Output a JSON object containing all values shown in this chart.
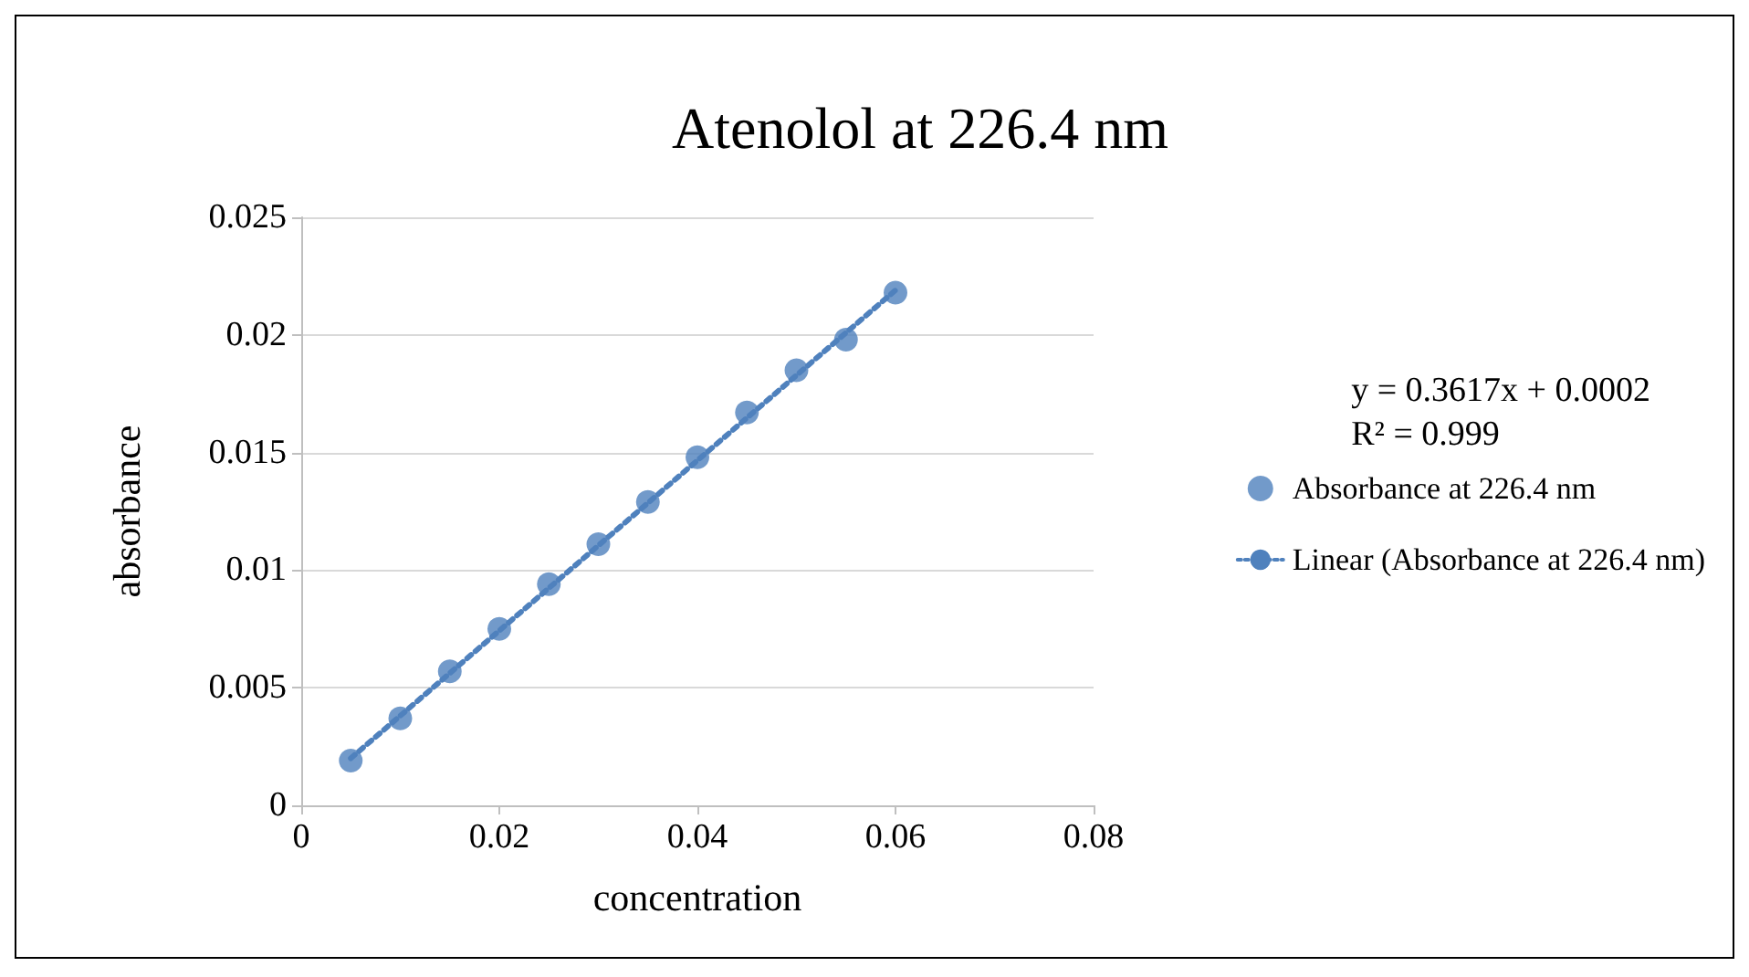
{
  "chart_data": {
    "type": "scatter",
    "title": "Atenolol at 226.4 nm",
    "xlabel": "concentration",
    "ylabel": "absorbance",
    "xlim": [
      0,
      0.08
    ],
    "xticks": [
      0,
      0.02,
      0.04,
      0.06,
      0.08
    ],
    "ylim": [
      0,
      0.025
    ],
    "yticks": [
      0,
      0.005,
      0.01,
      0.015,
      0.02,
      0.025
    ],
    "grid": "y",
    "legend": "right",
    "marker": "circle",
    "annotations": [
      "y = 0.3617x + 0.0002\nR² = 0.999"
    ],
    "series": [
      {
        "name": "Absorbance at 226.4 nm",
        "color": "#4f81bd",
        "x": [
          0.005,
          0.01,
          0.015,
          0.02,
          0.025,
          0.03,
          0.035,
          0.04,
          0.045,
          0.05,
          0.055,
          0.06
        ],
        "values": [
          0.0019,
          0.0037,
          0.0057,
          0.0075,
          0.0094,
          0.0111,
          0.0129,
          0.0148,
          0.0167,
          0.0185,
          0.0198,
          0.0218
        ]
      },
      {
        "type": "line",
        "name": "Linear (Absorbance at 226.4 nm)",
        "color": "#4f81bd",
        "line_style": "dotted",
        "marker": "none",
        "x": [
          0.005,
          0.06
        ],
        "values": [
          0.002,
          0.0219
        ]
      }
    ]
  }
}
